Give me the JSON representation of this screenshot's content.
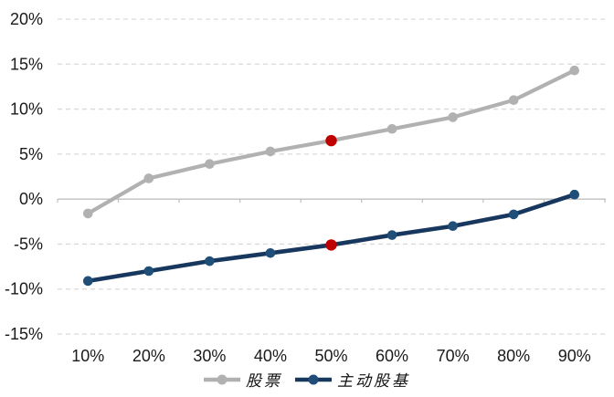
{
  "chart_data": {
    "type": "line",
    "title": "",
    "xlabel": "",
    "ylabel": "",
    "categories": [
      "10%",
      "20%",
      "30%",
      "40%",
      "50%",
      "60%",
      "70%",
      "80%",
      "90%"
    ],
    "series": [
      {
        "name": "股票",
        "line_color": "#b1b1b1",
        "marker_color": "#b1b1b1",
        "values": [
          -1.6,
          2.3,
          3.9,
          5.3,
          6.5,
          7.8,
          9.1,
          11.0,
          14.3
        ],
        "highlight_index": 4,
        "highlight_color": "#c00000"
      },
      {
        "name": "主动股基",
        "line_color": "#17375e",
        "marker_color": "#1f4e79",
        "values": [
          -9.1,
          -8.0,
          -6.9,
          -6.0,
          -5.1,
          -4.0,
          -3.0,
          -1.7,
          0.5
        ],
        "highlight_index": 4,
        "highlight_color": "#c00000"
      }
    ],
    "y_ticks": [
      {
        "label": "20%",
        "value": 20
      },
      {
        "label": "15%",
        "value": 15
      },
      {
        "label": "10%",
        "value": 10
      },
      {
        "label": "5%",
        "value": 5
      },
      {
        "label": "0%",
        "value": 0
      },
      {
        "label": "-5%",
        "value": -5
      },
      {
        "label": "-10%",
        "value": -10
      },
      {
        "label": "-15%",
        "value": -15
      }
    ],
    "ylim": [
      -15,
      20
    ],
    "grid": "horizontal-dashed",
    "gridline_color": "#d9d9d9",
    "axis_color": "#bfbfbf",
    "tick_color": "#bfbfbf",
    "label_color": "#1a1a1a",
    "legend_position": "bottom"
  }
}
